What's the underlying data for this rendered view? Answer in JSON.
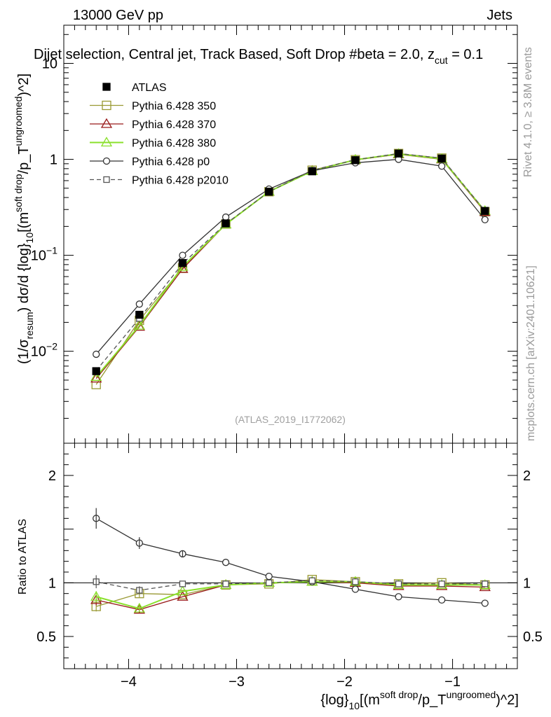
{
  "header": {
    "left": "13000 GeV pp",
    "right": "Jets",
    "title": "Dijet selection, Central jet, Track Based, Soft Drop #beta = 2.0, z_{cut} = 0.1"
  },
  "side_labels": {
    "rivet": "Rivet 4.1.0, ≥ 3.8M events",
    "mcplots": "mcplots.cern.ch [arXiv:2401.10621]"
  },
  "watermark": "(ATLAS_2019_I1772062)",
  "legend": [
    {
      "label": "ATLAS",
      "color": "#000000",
      "marker": "filled-square",
      "dash": false
    },
    {
      "label": "Pythia 6.428 350",
      "color": "#999933",
      "marker": "open-square",
      "dash": false
    },
    {
      "label": "Pythia 6.428 370",
      "color": "#991a1a",
      "marker": "open-triangle",
      "dash": false
    },
    {
      "label": "Pythia 6.428 380",
      "color": "#8ae02b",
      "marker": "open-triangle",
      "dash": false
    },
    {
      "label": "Pythia 6.428 p0",
      "color": "#333333",
      "marker": "open-circle",
      "dash": false
    },
    {
      "label": "Pythia 6.428 p2010",
      "color": "#555555",
      "marker": "open-square-small",
      "dash": true
    }
  ],
  "axes": {
    "ylabel_main": "(1/σ_{resum}) dσ/d {log}_{10}[(m^{soft drop}/p_T^{ungroomed})^2]",
    "ylabel_ratio": "Ratio to ATLAS",
    "xlabel": "{log}_{10}[(m^{soft drop}/p_T^{ungroomed})^2]",
    "main_yticks": [
      {
        "v": 0.01,
        "label": "10^{−2}"
      },
      {
        "v": 0.1,
        "label": "10^{−1}"
      },
      {
        "v": 1,
        "label": "1"
      },
      {
        "v": 10,
        "label": "10"
      }
    ],
    "ratio_yticks": [
      {
        "v": 0.5,
        "label": "0.5"
      },
      {
        "v": 1,
        "label": "1"
      },
      {
        "v": 2,
        "label": "2"
      }
    ],
    "xticks": [
      {
        "v": -4,
        "label": "−4"
      },
      {
        "v": -3,
        "label": "−3"
      },
      {
        "v": -2,
        "label": "−2"
      },
      {
        "v": -1,
        "label": "−1"
      }
    ]
  },
  "chart_data": {
    "type": "line",
    "xlim": [
      -4.6,
      -0.4
    ],
    "ylim_main": [
      0.0011,
      25
    ],
    "ylim_ratio": [
      0.2,
      2.3
    ],
    "x": [
      -4.3,
      -3.9,
      -3.5,
      -3.1,
      -2.7,
      -2.3,
      -1.9,
      -1.5,
      -1.1,
      -0.7
    ],
    "data": {
      "name": "ATLAS",
      "values": [
        0.0062,
        0.024,
        0.083,
        0.215,
        0.46,
        0.75,
        0.98,
        1.15,
        1.02,
        0.29
      ],
      "errors": [
        0.0004,
        0.0012,
        0.003,
        0.006,
        0.01,
        0.015,
        0.02,
        0.02,
        0.02,
        0.008
      ]
    },
    "series": [
      {
        "name": "Pythia 6.428 350",
        "values": [
          0.0045,
          0.021,
          0.074,
          0.212,
          0.46,
          0.77,
          0.99,
          1.15,
          1.03,
          0.285
        ],
        "ratio": [
          0.78,
          0.9,
          0.89,
          0.98,
          0.99,
          1.03,
          1.01,
          0.99,
          1.0,
          0.98
        ]
      },
      {
        "name": "Pythia 6.428 370",
        "values": [
          0.0052,
          0.018,
          0.072,
          0.21,
          0.46,
          0.76,
          0.985,
          1.13,
          1.0,
          0.283
        ],
        "ratio": [
          0.84,
          0.75,
          0.87,
          0.98,
          1.0,
          1.01,
          1.0,
          0.97,
          0.97,
          0.96
        ]
      },
      {
        "name": "Pythia 6.428 380",
        "values": [
          0.0054,
          0.0185,
          0.076,
          0.21,
          0.46,
          0.755,
          0.99,
          1.14,
          1.01,
          0.29
        ],
        "ratio": [
          0.87,
          0.76,
          0.92,
          0.98,
          1.0,
          1.01,
          1.01,
          0.98,
          0.98,
          0.98
        ]
      },
      {
        "name": "Pythia 6.428 p0",
        "values": [
          0.0093,
          0.031,
          0.1,
          0.25,
          0.49,
          0.76,
          0.92,
          1.0,
          0.85,
          0.235
        ],
        "ratio": [
          1.6,
          1.37,
          1.27,
          1.19,
          1.06,
          1.01,
          0.94,
          0.87,
          0.84,
          0.81
        ]
      },
      {
        "name": "Pythia 6.428 p2010",
        "values": [
          0.0063,
          0.022,
          0.082,
          0.213,
          0.46,
          0.77,
          0.99,
          1.15,
          1.03,
          0.29
        ],
        "ratio": [
          1.01,
          0.93,
          0.99,
          0.99,
          1.0,
          1.02,
          1.01,
          0.99,
          0.99,
          0.99
        ]
      }
    ],
    "ratio_errors": [
      0.06,
      0.04,
      0.025,
      0.02,
      0.02,
      0.02,
      0.02,
      0.018,
      0.02,
      0.025
    ]
  }
}
